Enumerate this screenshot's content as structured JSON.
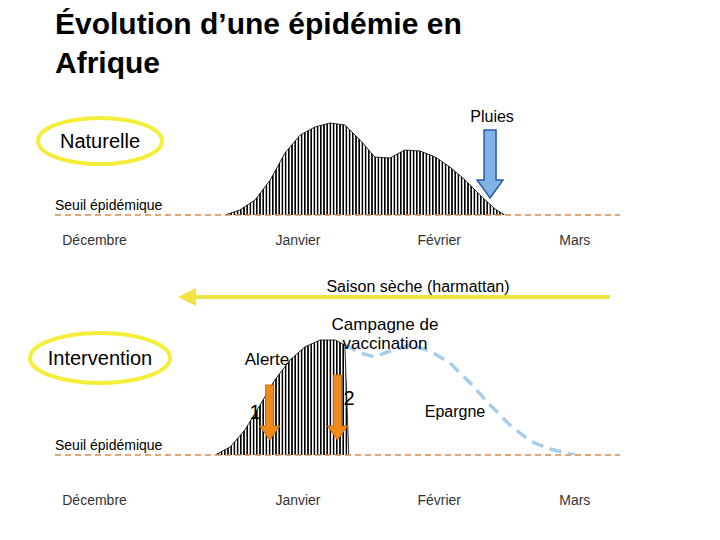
{
  "title": "Évolution d’une épidémie en Afrique",
  "season": "Saison sèche (harmattan)",
  "chart_data": [
    {
      "type": "area",
      "subtitle": "Naturelle",
      "threshold_label": "Seuil épidémique",
      "threshold": 0,
      "tick_labels": "x",
      "x": [
        30.1,
        32.7,
        35.4,
        38.1,
        40.7,
        43.4,
        46,
        48.7,
        51.3,
        54,
        56.6,
        59.3,
        61.9,
        64.6,
        67.3,
        69.9,
        72.6,
        75.2,
        77.9,
        79.6
      ],
      "series": [
        {
          "color": "#000000",
          "values": [
            0,
            5,
            15,
            35,
            62,
            80,
            88,
            92,
            90,
            75,
            58,
            57,
            65,
            64,
            58,
            48,
            35,
            20,
            6,
            0
          ]
        }
      ],
      "xlim": [
        0,
        100
      ],
      "xticks": [
        {
          "value": 7,
          "label": "Décembre"
        },
        {
          "value": 43,
          "label": "Janvier"
        },
        {
          "value": 68,
          "label": "Février"
        },
        {
          "value": 92,
          "label": "Mars"
        }
      ],
      "ylim": [
        0,
        120
      ],
      "annotations": [
        {
          "text": "Pluies",
          "x": 77,
          "y": 85
        }
      ]
    },
    {
      "type": "area",
      "subtitle": "Intervention",
      "threshold_label": "Seuil épidémique",
      "threshold": 0,
      "tick_labels": "x",
      "x": [
        28.3,
        31,
        33.6,
        36.3,
        38.9,
        41.6,
        44.2,
        46.9,
        49.6,
        51.3,
        52,
        54,
        56.6,
        59.3,
        62.8,
        66.4,
        69.9,
        73.5,
        77,
        80.5,
        84.1,
        87.6,
        92
      ],
      "series": [
        {
          "color": "#000000",
          "values": [
            0,
            8,
            25,
            50,
            75,
            95,
            108,
            115,
            115,
            110,
            0,
            null,
            null,
            null,
            null,
            null,
            null,
            null,
            null,
            null,
            null,
            null,
            null
          ]
        },
        {
          "type": "line",
          "line_style": "dashed",
          "color": "#a8cdea",
          "values": [
            null,
            null,
            null,
            null,
            null,
            null,
            null,
            null,
            null,
            110,
            108,
            102,
            98,
            104,
            110,
            104,
            92,
            72,
            50,
            30,
            14,
            6,
            0
          ]
        }
      ],
      "xlim": [
        0,
        100
      ],
      "xticks": [
        {
          "value": 7,
          "label": "Décembre"
        },
        {
          "value": 43,
          "label": "Janvier"
        },
        {
          "value": 68,
          "label": "Février"
        },
        {
          "value": 92,
          "label": "Mars"
        }
      ],
      "ylim": [
        0,
        120
      ],
      "annotations": [
        {
          "text": "1",
          "x": 38,
          "y": 70
        },
        {
          "text": "2",
          "x": 50,
          "y": 80
        }
      ],
      "notes": [
        "Alerte",
        "Campagne de vaccination",
        "Epargne"
      ]
    }
  ]
}
